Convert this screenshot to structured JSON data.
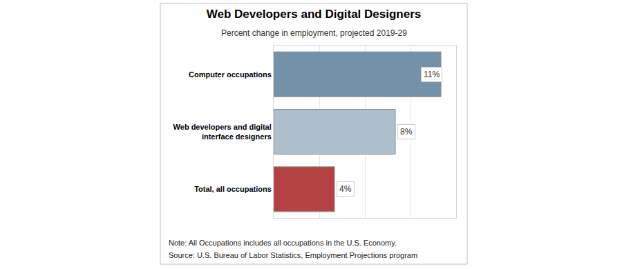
{
  "chart_data": {
    "type": "bar",
    "orientation": "horizontal",
    "title": "Web Developers and Digital Designers",
    "subtitle": "Percent change in employment, projected 2019-29",
    "categories": [
      "Computer occupations",
      "Web developers and digital interface designers",
      "Total, all occupations"
    ],
    "values": [
      11,
      8,
      4
    ],
    "value_labels": [
      "11%",
      "8%",
      "4%"
    ],
    "colors": [
      "#7391a8",
      "#adbfcc",
      "#b54242"
    ],
    "xlim": [
      0,
      12
    ],
    "xticks": [
      0,
      3,
      6,
      9,
      12
    ],
    "grid": true,
    "data_labels": true,
    "tick_labels": "y",
    "annotations": [
      "Note: All Occupations includes all occupations in the U.S. Economy.",
      "Source: U.S. Bureau of Labor Statistics, Employment Projections program"
    ]
  }
}
